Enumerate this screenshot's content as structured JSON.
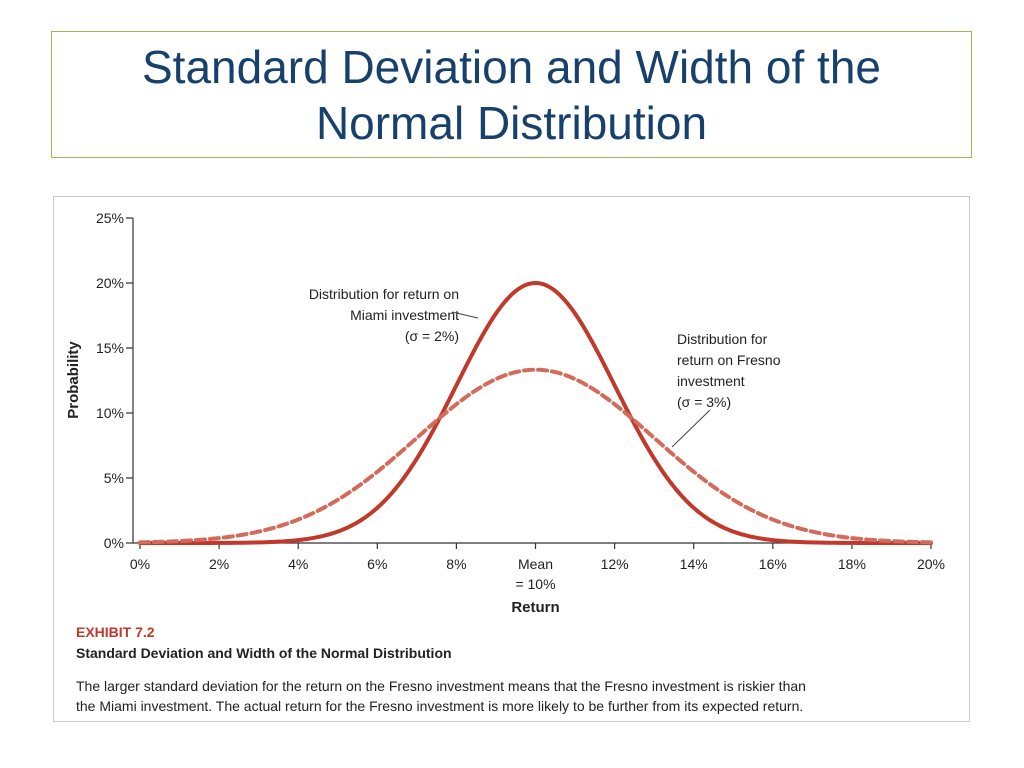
{
  "slide": {
    "title_line1": "Standard Deviation and Width of the",
    "title_line2": "Normal Distribution"
  },
  "exhibit": {
    "number": "EXHIBIT 7.2",
    "title": "Standard Deviation and Width of the Normal Distribution",
    "caption_line1": "The larger standard deviation for the return on the Fresno investment means that the Fresno investment is riskier than",
    "caption_line2": "the Miami investment. The actual return for the Fresno investment is more likely to be further from its expected return."
  },
  "chart_data": {
    "type": "line",
    "title": "",
    "xlabel": "Return",
    "ylabel": "Probability",
    "xlim": [
      0,
      20
    ],
    "ylim": [
      0,
      25
    ],
    "x_ticks": [
      0,
      2,
      4,
      6,
      8,
      10,
      12,
      14,
      16,
      18,
      20
    ],
    "x_tick_labels": [
      "0%",
      "2%",
      "4%",
      "6%",
      "8%",
      "Mean",
      "12%",
      "14%",
      "16%",
      "18%",
      "20%"
    ],
    "x_tick_sublabel_mean": "= 10%",
    "y_ticks": [
      0,
      5,
      10,
      15,
      20,
      25
    ],
    "y_tick_labels": [
      "0%",
      "5%",
      "10%",
      "15%",
      "20%",
      "25%"
    ],
    "series": [
      {
        "name": "Miami investment",
        "mean": 10,
        "sigma": 2,
        "peak": 20,
        "style": "solid",
        "color": "#c0392b",
        "label_lines": [
          "Distribution for return on",
          "Miami investment",
          "(σ = 2%)"
        ]
      },
      {
        "name": "Fresno investment",
        "mean": 10,
        "sigma": 3,
        "peak": 13.33,
        "style": "dashed",
        "color": "#d46a5c",
        "label_lines": [
          "Distribution for",
          "return on Fresno",
          "investment",
          "(σ = 3%)"
        ]
      }
    ]
  }
}
